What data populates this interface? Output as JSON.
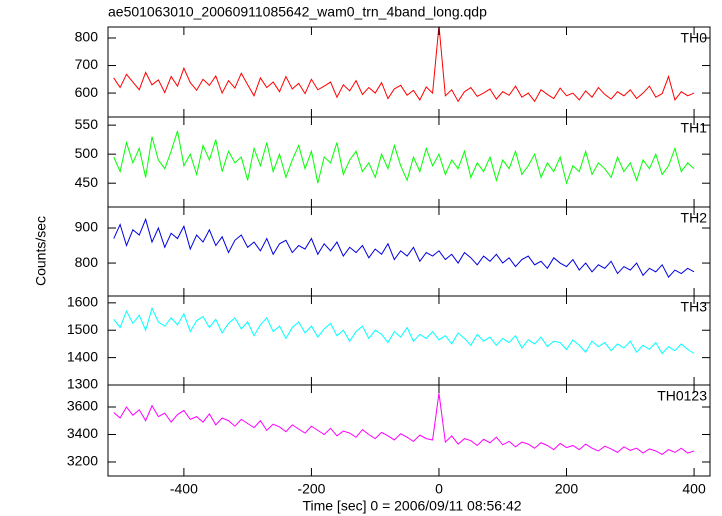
{
  "chart_data": {
    "type": "line",
    "title": "ae501063010_20060911085642_wam0_trn_4band_long.qdp",
    "xlabel": "Time [sec] 0 = 2006/09/11 08:56:42",
    "ylabel": "Counts/sec",
    "xlim": [
      -519,
      425
    ],
    "xticks": [
      -400,
      -200,
      0,
      200,
      400
    ],
    "x": [
      -510,
      -500,
      -490,
      -480,
      -470,
      -460,
      -450,
      -440,
      -430,
      -420,
      -410,
      -400,
      -390,
      -380,
      -370,
      -360,
      -350,
      -340,
      -330,
      -320,
      -310,
      -300,
      -290,
      -280,
      -270,
      -260,
      -250,
      -240,
      -230,
      -220,
      -210,
      -200,
      -190,
      -180,
      -170,
      -160,
      -150,
      -140,
      -130,
      -120,
      -110,
      -100,
      -90,
      -80,
      -70,
      -60,
      -50,
      -40,
      -30,
      -20,
      -10,
      0,
      10,
      20,
      30,
      40,
      50,
      60,
      70,
      80,
      90,
      100,
      110,
      120,
      130,
      140,
      150,
      160,
      170,
      180,
      190,
      200,
      210,
      220,
      230,
      240,
      250,
      260,
      270,
      280,
      290,
      300,
      310,
      320,
      330,
      340,
      350,
      360,
      370,
      380,
      390,
      400
    ],
    "panels": [
      {
        "name": "TH0",
        "color": "#ff0000",
        "ylim": [
          513,
          840
        ],
        "yticks": [
          600,
          700,
          800
        ],
        "values": [
          655,
          620,
          668,
          640,
          612,
          675,
          630,
          648,
          602,
          660,
          625,
          690,
          638,
          610,
          650,
          628,
          662,
          600,
          645,
          618,
          672,
          630,
          590,
          655,
          620,
          640,
          605,
          660,
          615,
          635,
          598,
          650,
          612,
          625,
          640,
          585,
          630,
          608,
          645,
          595,
          620,
          600,
          638,
          580,
          615,
          628,
          592,
          610,
          575,
          622,
          600,
          845,
          590,
          612,
          570,
          605,
          620,
          588,
          600,
          615,
          578,
          605,
          592,
          625,
          585,
          600,
          570,
          612,
          595,
          580,
          618,
          590,
          600,
          575,
          608,
          585,
          620,
          595,
          578,
          605,
          590,
          612,
          580,
          600,
          625,
          585,
          598,
          660,
          575,
          605,
          590,
          600
        ]
      },
      {
        "name": "TH1",
        "color": "#00ff00",
        "ylim": [
          409,
          564
        ],
        "yticks": [
          450,
          500,
          550
        ],
        "values": [
          495,
          470,
          520,
          485,
          510,
          460,
          530,
          490,
          475,
          505,
          540,
          480,
          500,
          465,
          515,
          490,
          525,
          470,
          505,
          485,
          495,
          455,
          510,
          480,
          520,
          470,
          500,
          460,
          490,
          515,
          475,
          505,
          450,
          495,
          485,
          520,
          465,
          490,
          505,
          470,
          485,
          460,
          500,
          475,
          515,
          480,
          455,
          495,
          470,
          510,
          480,
          500,
          465,
          490,
          475,
          505,
          460,
          485,
          470,
          495,
          455,
          490,
          475,
          505,
          465,
          480,
          500,
          460,
          485,
          470,
          495,
          450,
          480,
          470,
          505,
          465,
          485,
          475,
          460,
          495,
          470,
          485,
          455,
          490,
          475,
          500,
          465,
          480,
          510,
          470,
          485,
          475
        ]
      },
      {
        "name": "TH2",
        "color": "#0000e0",
        "ylim": [
          706,
          960
        ],
        "yticks": [
          800,
          900
        ],
        "values": [
          870,
          910,
          850,
          895,
          880,
          925,
          860,
          900,
          845,
          885,
          870,
          905,
          840,
          880,
          860,
          895,
          850,
          875,
          830,
          865,
          880,
          845,
          860,
          835,
          870,
          825,
          855,
          865,
          830,
          850,
          840,
          870,
          825,
          855,
          835,
          860,
          820,
          845,
          830,
          850,
          815,
          840,
          825,
          855,
          810,
          835,
          820,
          845,
          805,
          830,
          820,
          835,
          810,
          825,
          800,
          830,
          815,
          795,
          820,
          805,
          825,
          800,
          815,
          790,
          810,
          820,
          795,
          805,
          785,
          815,
          800,
          790,
          810,
          780,
          800,
          775,
          795,
          785,
          805,
          770,
          790,
          780,
          800,
          765,
          785,
          775,
          795,
          760,
          780,
          770,
          785,
          775
        ]
      },
      {
        "name": "TH3",
        "color": "#00ffff",
        "ylim": [
          1300,
          1625
        ],
        "yticks": [
          1300,
          1400,
          1500,
          1600
        ],
        "values": [
          1540,
          1510,
          1570,
          1525,
          1555,
          1500,
          1580,
          1530,
          1515,
          1545,
          1520,
          1560,
          1495,
          1535,
          1550,
          1510,
          1540,
          1490,
          1525,
          1545,
          1505,
          1530,
          1480,
          1520,
          1545,
          1495,
          1515,
          1470,
          1510,
          1530,
          1490,
          1515,
          1475,
          1505,
          1525,
          1480,
          1500,
          1460,
          1495,
          1515,
          1470,
          1500,
          1485,
          1455,
          1495,
          1475,
          1510,
          1460,
          1485,
          1470,
          1495,
          1465,
          1480,
          1450,
          1490,
          1470,
          1445,
          1485,
          1460,
          1475,
          1445,
          1470,
          1455,
          1480,
          1435,
          1465,
          1450,
          1475,
          1440,
          1460,
          1455,
          1430,
          1465,
          1445,
          1420,
          1460,
          1440,
          1455,
          1425,
          1450,
          1435,
          1460,
          1420,
          1445,
          1430,
          1455,
          1415,
          1440,
          1425,
          1450,
          1430,
          1415
        ]
      },
      {
        "name": "TH0123",
        "color": "#ff00ff",
        "ylim": [
          3098,
          3760
        ],
        "yticks": [
          3200,
          3400,
          3600
        ],
        "values": [
          3560,
          3520,
          3600,
          3540,
          3580,
          3500,
          3610,
          3530,
          3555,
          3490,
          3545,
          3575,
          3510,
          3530,
          3490,
          3550,
          3470,
          3520,
          3500,
          3460,
          3510,
          3480,
          3450,
          3500,
          3430,
          3475,
          3455,
          3420,
          3470,
          3440,
          3410,
          3460,
          3430,
          3400,
          3445,
          3390,
          3425,
          3410,
          3380,
          3435,
          3400,
          3370,
          3415,
          3390,
          3360,
          3405,
          3380,
          3350,
          3395,
          3370,
          3360,
          3700,
          3345,
          3390,
          3330,
          3370,
          3355,
          3320,
          3365,
          3340,
          3380,
          3325,
          3350,
          3310,
          3345,
          3330,
          3300,
          3340,
          3320,
          3290,
          3335,
          3305,
          3320,
          3290,
          3330,
          3300,
          3280,
          3315,
          3295,
          3270,
          3310,
          3285,
          3300,
          3265,
          3295,
          3280,
          3255,
          3290,
          3270,
          3300,
          3265,
          3280
        ]
      }
    ]
  }
}
